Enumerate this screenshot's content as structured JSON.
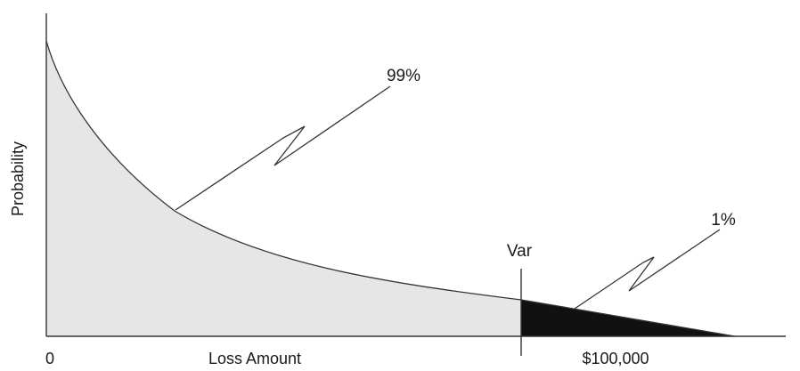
{
  "labels": {
    "y_axis": "Probability",
    "x_axis": "Loss Amount",
    "origin": "0",
    "var_label": "Var",
    "var_value": "$100,000",
    "body_pct": "99%",
    "tail_pct": "1%"
  },
  "colors": {
    "body_fill": "#e6e6e6",
    "tail_fill": "#111111",
    "line": "#333333"
  }
}
